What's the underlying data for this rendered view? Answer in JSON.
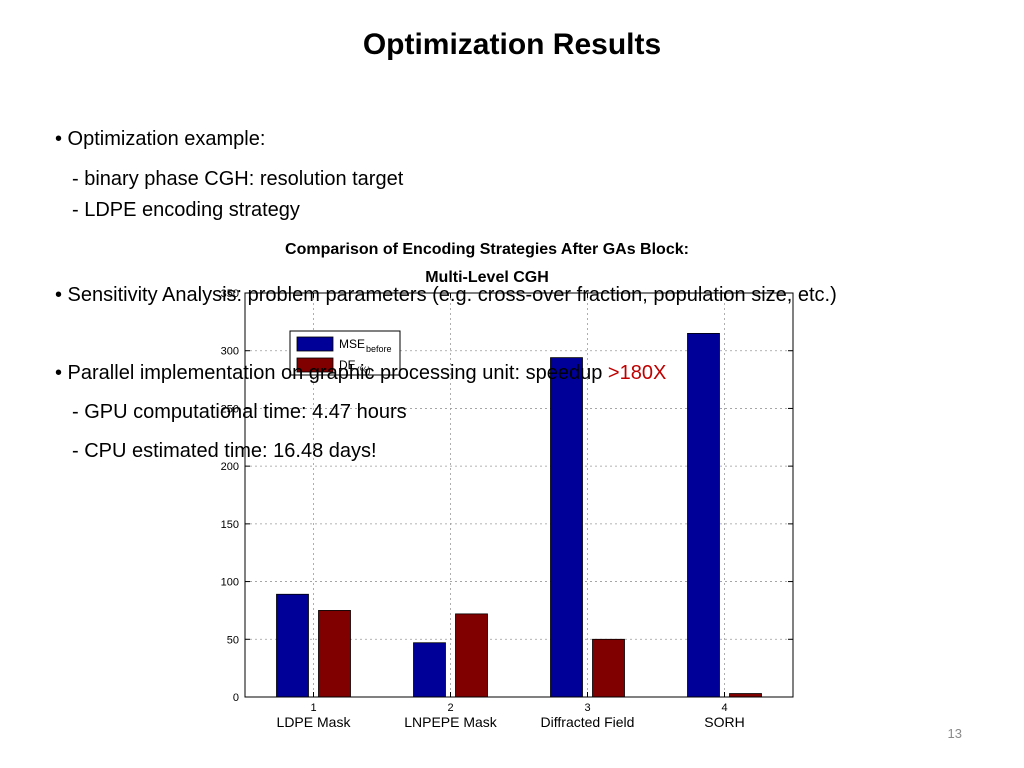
{
  "slide": {
    "title": "Optimization Results",
    "page_number": "13"
  },
  "bullets": {
    "b1": "• Optimization example:",
    "b1_sub1": "- binary phase CGH: resolution target",
    "b1_sub2": "- LDPE encoding strategy",
    "b2": "• Sensitivity Analysis: problem parameters (e.g. cross-over fraction, population size, etc.)",
    "b3_prefix": "• Parallel implementation on graphic processing unit: speedup ",
    "b3_highlight": ">180X",
    "b3_sub1": "- GPU computational time: 4.47 hours",
    "b3_sub2": "- CPU estimated time: 16.48 days!"
  },
  "colors": {
    "accent": "#c00000",
    "series_1": "#000099",
    "series_2": "#800000"
  },
  "chart_data": {
    "type": "bar",
    "title_line1": "Comparison of Encoding Strategies After GAs Block:",
    "title_line2": "Multi-Level CGH",
    "categories": [
      "1",
      "2",
      "3",
      "4"
    ],
    "category_labels": [
      "LDPE Mask",
      "LNPEPE Mask",
      "Diffracted Field",
      "SORH"
    ],
    "series": [
      {
        "name": "MSE",
        "subscript": "before",
        "values": [
          89,
          47,
          294,
          315
        ]
      },
      {
        "name": "DE",
        "subscript": "(%)",
        "values": [
          75,
          72,
          50,
          3
        ]
      }
    ],
    "ylim": [
      0,
      350
    ],
    "yticks": [
      0,
      50,
      100,
      150,
      200,
      250,
      300,
      350
    ],
    "grid": true,
    "legend_position": "top-left"
  }
}
